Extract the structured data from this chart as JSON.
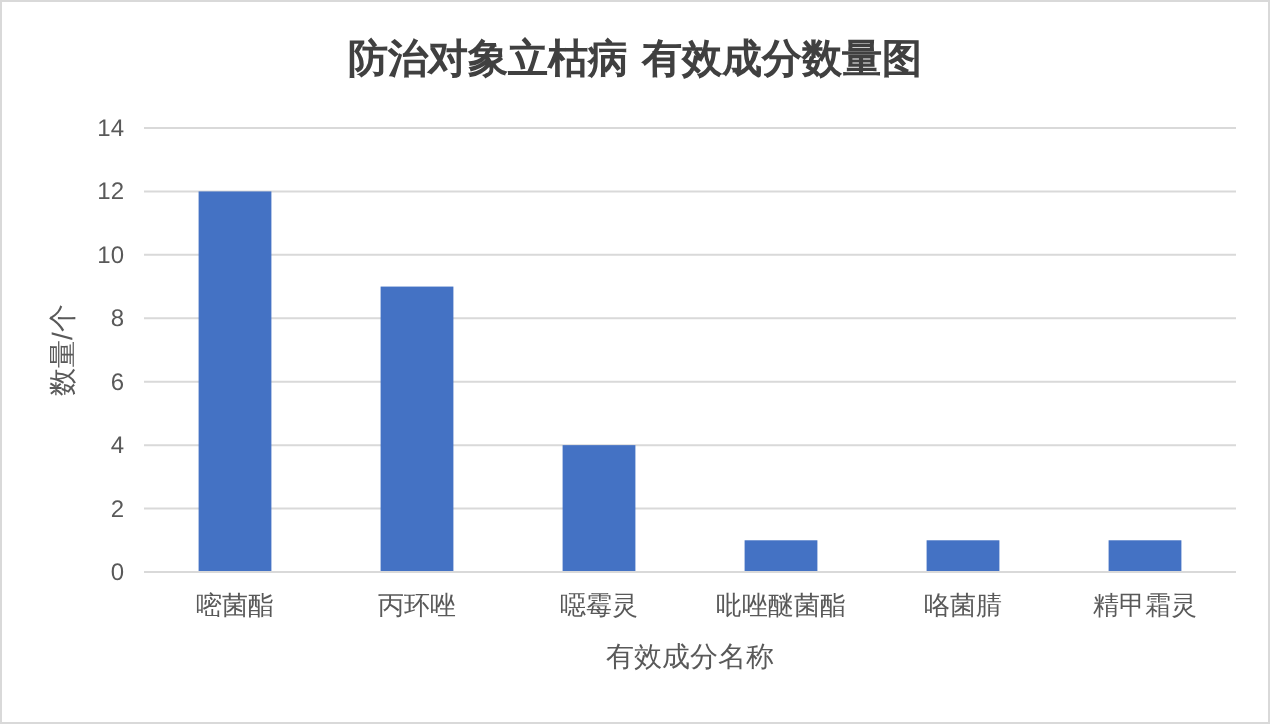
{
  "chart_data": {
    "type": "bar",
    "title": "防治对象立枯病 有效成分数量图",
    "xlabel": "有效成分名称",
    "ylabel": "数量/个",
    "categories": [
      "嘧菌酯",
      "丙环唑",
      "噁霉灵",
      "吡唑醚菌酯",
      "咯菌腈",
      "精甲霜灵"
    ],
    "series": [
      {
        "color": "#4472c4",
        "values": [
          12,
          9,
          4,
          1,
          1,
          1
        ]
      }
    ],
    "ylim": [
      0,
      14
    ],
    "yticks": [
      0,
      2,
      4,
      6,
      8,
      10,
      12,
      14
    ],
    "grid": "y"
  }
}
